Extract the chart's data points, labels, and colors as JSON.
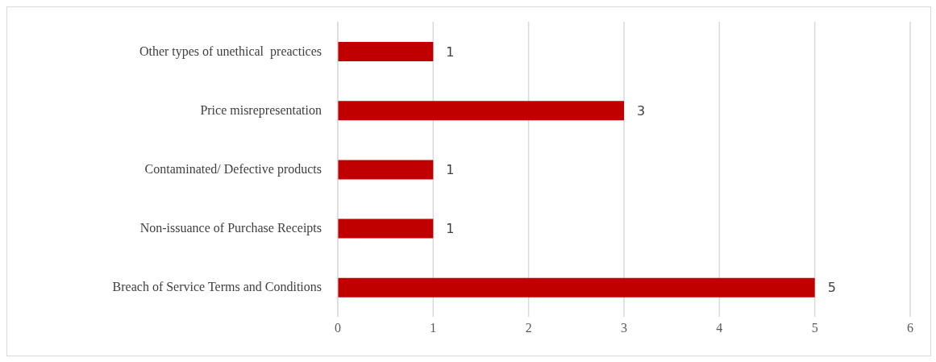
{
  "chart_data": {
    "type": "bar",
    "orientation": "horizontal",
    "categories": [
      "Other types of unethical  preactices",
      "Price misrepresentation",
      "Contaminated/ Defective products",
      "Non-issuance of Purchase Receipts",
      "Breach of Service Terms and Conditions"
    ],
    "values": [
      1,
      3,
      1,
      1,
      5
    ],
    "color": "#c00000",
    "xlim": [
      0,
      6
    ],
    "xticks": [
      0,
      1,
      2,
      3,
      4,
      5,
      6
    ],
    "grid": "x",
    "data_labels": true
  }
}
